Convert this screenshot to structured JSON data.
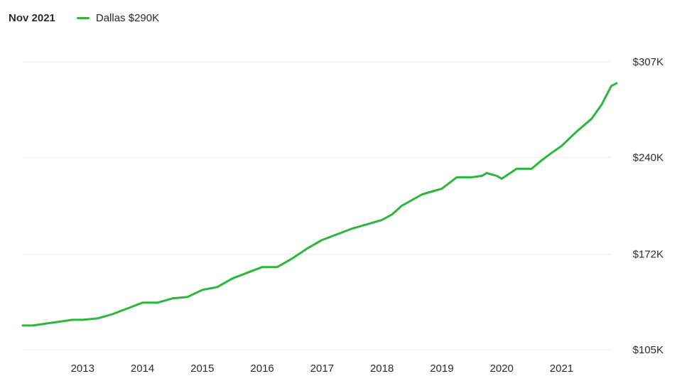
{
  "header": {
    "date_label": "Nov 2021",
    "legend_label": "Dallas $290K"
  },
  "colors": {
    "series": "#2db63e",
    "grid": "#ececec",
    "text": "#2a2a33"
  },
  "chart_data": {
    "type": "line",
    "grid": true,
    "legend_position": "top-left",
    "y_axis_position": "right",
    "ylim": [
      105,
      307
    ],
    "yticks": [
      {
        "value": 307,
        "label": "$307K"
      },
      {
        "value": 240,
        "label": "$240K"
      },
      {
        "value": 172,
        "label": "$172K"
      },
      {
        "value": 105,
        "label": "$105K"
      }
    ],
    "xlim": [
      2012.0,
      2021.92
    ],
    "xticks": [
      {
        "value": 2013,
        "label": "2013"
      },
      {
        "value": 2014,
        "label": "2014"
      },
      {
        "value": 2015,
        "label": "2015"
      },
      {
        "value": 2016,
        "label": "2016"
      },
      {
        "value": 2017,
        "label": "2017"
      },
      {
        "value": 2018,
        "label": "2018"
      },
      {
        "value": 2019,
        "label": "2019"
      },
      {
        "value": 2020,
        "label": "2020"
      },
      {
        "value": 2021,
        "label": "2021"
      }
    ],
    "series": [
      {
        "name": "Dallas",
        "x": [
          2012.0,
          2012.17,
          2012.33,
          2012.5,
          2012.67,
          2012.83,
          2013.0,
          2013.25,
          2013.5,
          2013.75,
          2014.0,
          2014.25,
          2014.5,
          2014.75,
          2015.0,
          2015.25,
          2015.5,
          2015.75,
          2016.0,
          2016.25,
          2016.5,
          2016.75,
          2017.0,
          2017.25,
          2017.5,
          2017.75,
          2018.0,
          2018.17,
          2018.33,
          2018.5,
          2018.67,
          2018.83,
          2019.0,
          2019.25,
          2019.5,
          2019.67,
          2019.75,
          2019.92,
          2020.0,
          2020.25,
          2020.5,
          2020.67,
          2020.83,
          2021.0,
          2021.25,
          2021.5,
          2021.67,
          2021.83,
          2021.92
        ],
        "y": [
          122,
          122,
          123,
          124,
          125,
          126,
          126,
          127,
          130,
          134,
          138,
          138,
          141,
          142,
          147,
          149,
          155,
          159,
          163,
          163,
          169,
          176,
          182,
          186,
          190,
          193,
          196,
          200,
          206,
          210,
          214,
          216,
          218,
          226,
          226,
          227,
          229,
          227,
          225,
          232,
          232,
          238,
          243,
          248,
          258,
          267,
          277,
          290,
          292
        ]
      }
    ]
  }
}
